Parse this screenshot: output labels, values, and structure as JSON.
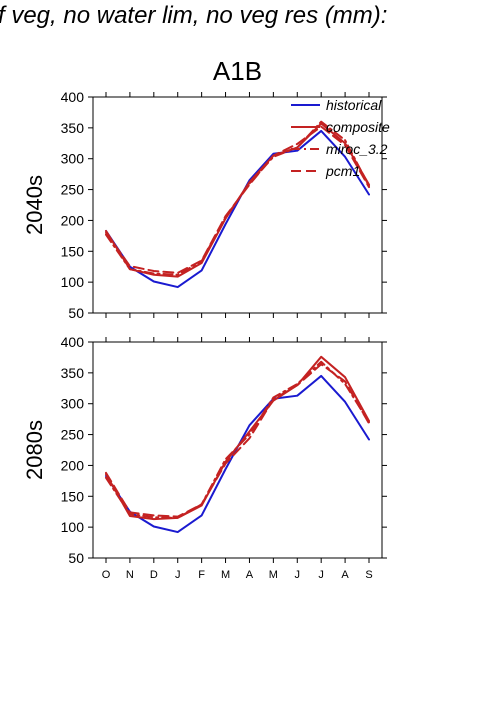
{
  "title": "f veg, no water lim, no veg res (mm):",
  "colors": {
    "historical": "#1a1ad0",
    "future": "#c42222",
    "axis": "#000000"
  },
  "chart_data": {
    "type": "line",
    "scenario": "A1B",
    "x": [
      "O",
      "N",
      "D",
      "J",
      "F",
      "M",
      "A",
      "M",
      "J",
      "J",
      "A",
      "S"
    ],
    "ylim": [
      50,
      400
    ],
    "yticks": [
      50,
      100,
      150,
      200,
      250,
      300,
      350,
      400
    ],
    "legend": {
      "position": "top-right",
      "entries": [
        "historical",
        "composite",
        "miroc_3.2",
        "pcm1"
      ]
    },
    "panels": [
      {
        "label": "2040s",
        "series": [
          {
            "name": "historical",
            "style": "solid",
            "color": "#1a1ad0",
            "values": [
              183,
              125,
              101,
              92,
              119,
              194,
              265,
              308,
              313,
              345,
              303,
              242
            ]
          },
          {
            "name": "composite",
            "style": "solid",
            "color": "#c42222",
            "values": [
              183,
              121,
              112,
              109,
              131,
              203,
              262,
              305,
              318,
              357,
              325,
              258
            ]
          },
          {
            "name": "miroc_3.2",
            "style": "dashdot",
            "color": "#c42222",
            "values": [
              177,
              121,
              114,
              112,
              134,
              205,
              260,
              303,
              318,
              360,
              330,
              256
            ]
          },
          {
            "name": "pcm1",
            "style": "dash",
            "color": "#c42222",
            "values": [
              180,
              126,
              118,
              115,
              135,
              207,
              258,
              305,
              324,
              352,
              322,
              254
            ]
          }
        ]
      },
      {
        "label": "2080s",
        "series": [
          {
            "name": "historical",
            "style": "solid",
            "color": "#1a1ad0",
            "values": [
              183,
              125,
              101,
              92,
              119,
              194,
              265,
              308,
              313,
              345,
              303,
              242
            ]
          },
          {
            "name": "composite",
            "style": "solid",
            "color": "#c42222",
            "values": [
              186,
              118,
              113,
              115,
              135,
              206,
              255,
              305,
              330,
              376,
              343,
              272
            ]
          },
          {
            "name": "miroc_3.2",
            "style": "dashdot",
            "color": "#c42222",
            "values": [
              180,
              121,
              116,
              115,
              137,
              210,
              250,
              310,
              332,
              368,
              332,
              270
            ]
          },
          {
            "name": "pcm1",
            "style": "dash",
            "color": "#c42222",
            "values": [
              188,
              124,
              119,
              117,
              137,
              203,
              244,
              307,
              330,
              364,
              336,
              268
            ]
          }
        ]
      }
    ]
  }
}
